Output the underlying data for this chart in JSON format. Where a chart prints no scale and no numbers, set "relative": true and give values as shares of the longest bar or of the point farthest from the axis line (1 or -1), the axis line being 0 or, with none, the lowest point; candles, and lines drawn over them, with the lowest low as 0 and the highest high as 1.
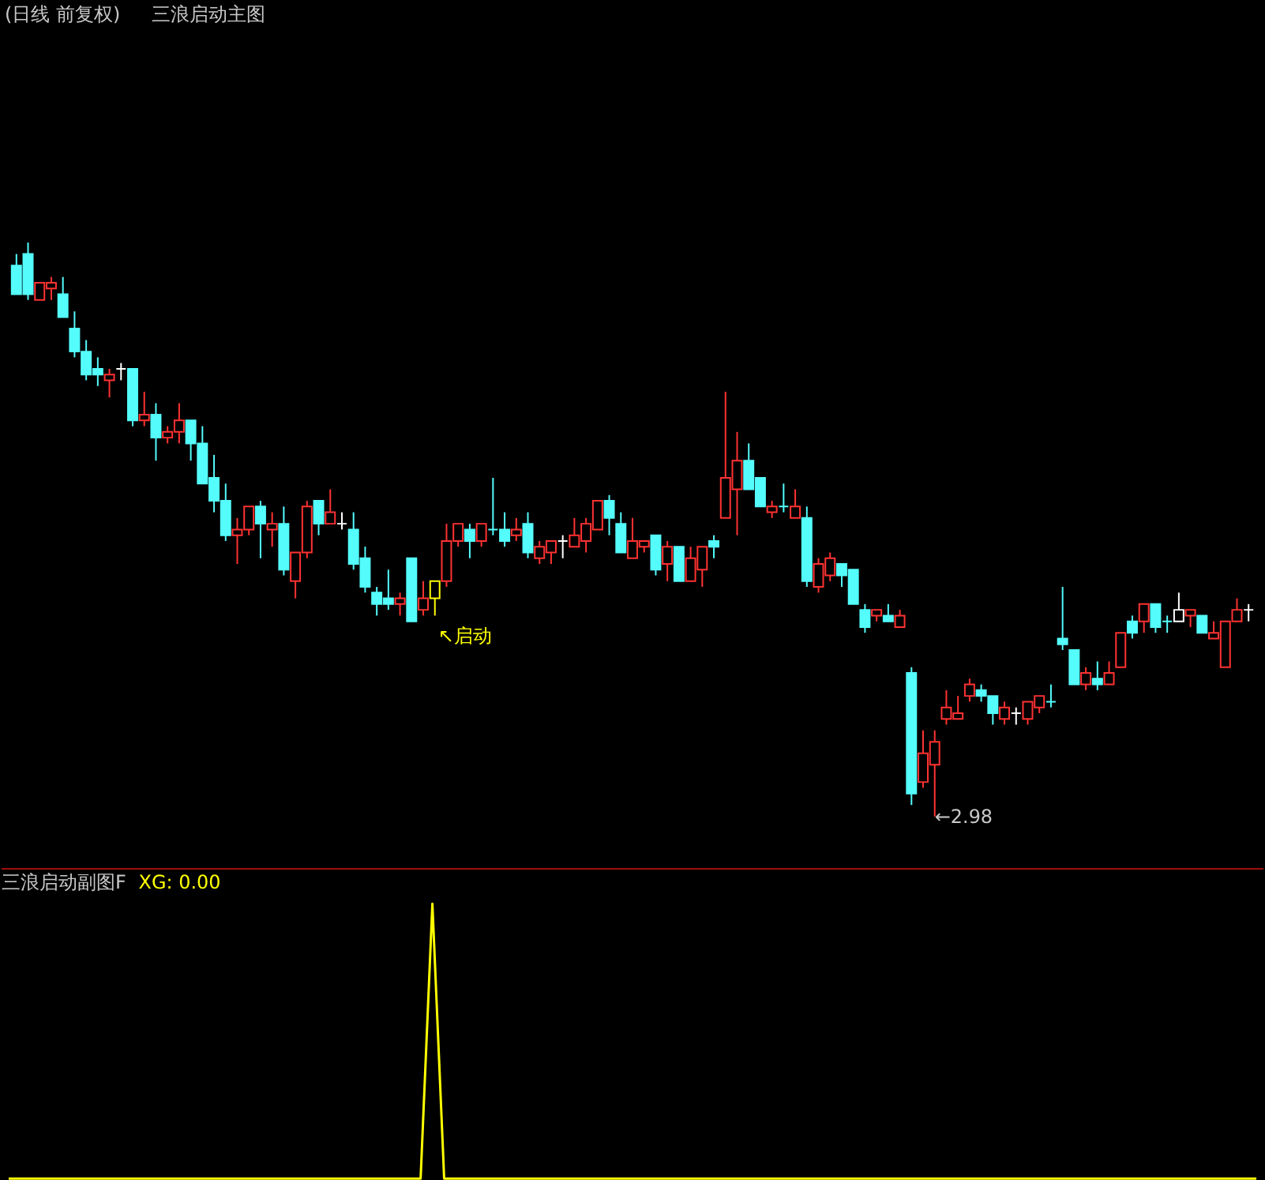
{
  "chart_data": [
    {
      "type": "candlestick",
      "title": "(日线 前复权)",
      "subtitle": "三浪启动主图",
      "relative": true,
      "annotations": [
        "↖启动",
        "←2.98"
      ],
      "categories": [
        null,
        null,
        null,
        null,
        null,
        null,
        null,
        null,
        null,
        null,
        null,
        null,
        null,
        null,
        null,
        null,
        null,
        null,
        null,
        null,
        null,
        null,
        null,
        null,
        null,
        null,
        null,
        null,
        null,
        null,
        null,
        null,
        null,
        null,
        null,
        null,
        null,
        null,
        null,
        null,
        null,
        null,
        null,
        null,
        null,
        null,
        null,
        null,
        null,
        null,
        null,
        null,
        null,
        null,
        null,
        null,
        null,
        null,
        null,
        null,
        null,
        null,
        null,
        null,
        null,
        null,
        null,
        null,
        null,
        null,
        null,
        null,
        null,
        null,
        null,
        null,
        null,
        null,
        null,
        null,
        null,
        null,
        null,
        null,
        null,
        null,
        null,
        null,
        null,
        null,
        null,
        null,
        null,
        null,
        null,
        null,
        null,
        null,
        null,
        null,
        null,
        null,
        null,
        null,
        null,
        null,
        null
      ],
      "ohlc": [
        [
          0.96,
          0.98,
          0.91,
          0.91
        ],
        [
          0.98,
          1.0,
          0.9,
          0.91
        ],
        [
          0.9,
          0.93,
          0.9,
          0.93
        ],
        [
          0.92,
          0.94,
          0.9,
          0.93
        ],
        [
          0.91,
          0.94,
          0.87,
          0.87
        ],
        [
          0.85,
          0.88,
          0.8,
          0.81
        ],
        [
          0.81,
          0.83,
          0.76,
          0.77
        ],
        [
          0.78,
          0.8,
          0.75,
          0.77
        ],
        [
          0.76,
          0.78,
          0.73,
          0.77
        ],
        [
          0.78,
          0.79,
          0.76,
          0.78
        ],
        [
          0.78,
          0.78,
          0.68,
          0.69
        ],
        [
          0.69,
          0.74,
          0.68,
          0.7
        ],
        [
          0.7,
          0.72,
          0.62,
          0.66
        ],
        [
          0.66,
          0.68,
          0.65,
          0.67
        ],
        [
          0.67,
          0.72,
          0.65,
          0.69
        ],
        [
          0.69,
          0.69,
          0.62,
          0.65
        ],
        [
          0.65,
          0.68,
          0.58,
          0.58
        ],
        [
          0.59,
          0.63,
          0.53,
          0.55
        ],
        [
          0.55,
          0.58,
          0.48,
          0.49
        ],
        [
          0.49,
          0.52,
          0.44,
          0.5
        ],
        [
          0.5,
          0.54,
          0.49,
          0.54
        ],
        [
          0.54,
          0.55,
          0.45,
          0.51
        ],
        [
          0.5,
          0.53,
          0.47,
          0.51
        ],
        [
          0.51,
          0.54,
          0.42,
          0.43
        ],
        [
          0.41,
          0.46,
          0.38,
          0.46
        ],
        [
          0.46,
          0.55,
          0.45,
          0.54
        ],
        [
          0.55,
          0.55,
          0.49,
          0.51
        ],
        [
          0.51,
          0.57,
          0.51,
          0.53
        ],
        [
          0.51,
          0.53,
          0.5,
          0.51
        ],
        [
          0.5,
          0.53,
          0.43,
          0.44
        ],
        [
          0.45,
          0.47,
          0.39,
          0.4
        ],
        [
          0.39,
          0.4,
          0.35,
          0.37
        ],
        [
          0.38,
          0.43,
          0.36,
          0.37
        ],
        [
          0.37,
          0.39,
          0.35,
          0.38
        ],
        [
          0.45,
          0.45,
          0.34,
          0.34
        ],
        [
          0.36,
          0.41,
          0.35,
          0.38
        ],
        [
          0.38,
          0.41,
          0.35,
          0.41
        ],
        [
          0.41,
          0.51,
          0.4,
          0.48
        ],
        [
          0.48,
          0.51,
          0.47,
          0.51
        ],
        [
          0.5,
          0.51,
          0.45,
          0.48
        ],
        [
          0.48,
          0.51,
          0.47,
          0.51
        ],
        [
          0.5,
          0.59,
          0.49,
          0.5
        ],
        [
          0.5,
          0.53,
          0.47,
          0.48
        ],
        [
          0.49,
          0.52,
          0.48,
          0.5
        ],
        [
          0.51,
          0.53,
          0.45,
          0.46
        ],
        [
          0.45,
          0.48,
          0.44,
          0.47
        ],
        [
          0.46,
          0.48,
          0.44,
          0.48
        ],
        [
          0.48,
          0.49,
          0.45,
          0.48
        ],
        [
          0.47,
          0.52,
          0.47,
          0.49
        ],
        [
          0.48,
          0.52,
          0.46,
          0.51
        ],
        [
          0.5,
          0.55,
          0.5,
          0.55
        ],
        [
          0.55,
          0.56,
          0.49,
          0.52
        ],
        [
          0.51,
          0.53,
          0.46,
          0.46
        ],
        [
          0.45,
          0.52,
          0.45,
          0.48
        ],
        [
          0.47,
          0.48,
          0.46,
          0.48
        ],
        [
          0.49,
          0.49,
          0.42,
          0.43
        ],
        [
          0.44,
          0.48,
          0.41,
          0.47
        ],
        [
          0.47,
          0.47,
          0.41,
          0.41
        ],
        [
          0.41,
          0.47,
          0.41,
          0.45
        ],
        [
          0.43,
          0.47,
          0.4,
          0.47
        ],
        [
          0.48,
          0.49,
          0.45,
          0.47
        ],
        [
          0.52,
          0.74,
          0.52,
          0.59
        ],
        [
          0.57,
          0.67,
          0.49,
          0.62
        ],
        [
          0.62,
          0.65,
          0.57,
          0.57
        ],
        [
          0.59,
          0.59,
          0.54,
          0.54
        ],
        [
          0.53,
          0.55,
          0.52,
          0.54
        ],
        [
          0.54,
          0.58,
          0.53,
          0.54
        ],
        [
          0.52,
          0.57,
          0.52,
          0.54
        ],
        [
          0.52,
          0.54,
          0.4,
          0.41
        ],
        [
          0.4,
          0.45,
          0.39,
          0.44
        ],
        [
          0.42,
          0.46,
          0.41,
          0.45
        ],
        [
          0.44,
          0.44,
          0.4,
          0.42
        ],
        [
          0.43,
          0.43,
          0.37,
          0.37
        ],
        [
          0.36,
          0.37,
          0.32,
          0.33
        ],
        [
          0.35,
          0.36,
          0.34,
          0.36
        ],
        [
          0.35,
          0.37,
          0.34,
          0.34
        ],
        [
          0.33,
          0.36,
          0.33,
          0.35
        ],
        [
          0.25,
          0.26,
          0.02,
          0.04
        ],
        [
          0.06,
          0.15,
          0.05,
          0.11
        ],
        [
          0.09,
          0.15,
          0.0,
          0.13
        ],
        [
          0.17,
          0.22,
          0.16,
          0.19
        ],
        [
          0.17,
          0.21,
          0.17,
          0.18
        ],
        [
          0.21,
          0.24,
          0.2,
          0.23
        ],
        [
          0.22,
          0.23,
          0.2,
          0.21
        ],
        [
          0.21,
          0.21,
          0.16,
          0.18
        ],
        [
          0.17,
          0.2,
          0.16,
          0.19
        ],
        [
          0.18,
          0.19,
          0.16,
          0.18
        ],
        [
          0.17,
          0.2,
          0.16,
          0.2
        ],
        [
          0.19,
          0.21,
          0.18,
          0.21
        ],
        [
          0.2,
          0.23,
          0.19,
          0.2
        ],
        [
          0.31,
          0.4,
          0.29,
          0.3
        ],
        [
          0.29,
          0.29,
          0.23,
          0.23
        ],
        [
          0.23,
          0.26,
          0.22,
          0.25
        ],
        [
          0.24,
          0.27,
          0.22,
          0.23
        ],
        [
          0.23,
          0.27,
          0.23,
          0.25
        ],
        [
          0.26,
          0.32,
          0.26,
          0.32
        ],
        [
          0.34,
          0.35,
          0.31,
          0.32
        ],
        [
          0.34,
          0.37,
          0.32,
          0.37
        ],
        [
          0.37,
          0.37,
          0.32,
          0.33
        ],
        [
          0.34,
          0.35,
          0.32,
          0.34
        ],
        [
          0.34,
          0.39,
          0.34,
          0.36
        ],
        [
          0.35,
          0.36,
          0.33,
          0.36
        ],
        [
          0.35,
          0.35,
          0.32,
          0.32
        ],
        [
          0.31,
          0.34,
          0.31,
          0.32
        ],
        [
          0.26,
          0.34,
          0.26,
          0.34
        ],
        [
          0.34,
          0.38,
          0.34,
          0.36
        ],
        [
          0.36,
          0.37,
          0.34,
          0.36
        ]
      ],
      "colors": [
        "#54fcfc",
        "#54fcfc",
        "#ff3232",
        "#ff3232",
        "#54fcfc",
        "#54fcfc",
        "#54fcfc",
        "#54fcfc",
        "#ff3232",
        "#ffffff",
        "#54fcfc",
        "#ff3232",
        "#54fcfc",
        "#ff3232",
        "#ff3232",
        "#54fcfc",
        "#54fcfc",
        "#54fcfc",
        "#54fcfc",
        "#ff3232",
        "#ff3232",
        "#54fcfc",
        "#ff3232",
        "#54fcfc",
        "#ff3232",
        "#ff3232",
        "#54fcfc",
        "#ff3232",
        "#ffffff",
        "#54fcfc",
        "#54fcfc",
        "#54fcfc",
        "#54fcfc",
        "#ff3232",
        "#54fcfc",
        "#ff3232",
        "#ffff00",
        "#ff3232",
        "#ff3232",
        "#54fcfc",
        "#ff3232",
        "#54fcfc",
        "#54fcfc",
        "#ff3232",
        "#54fcfc",
        "#ff3232",
        "#ff3232",
        "#ffffff",
        "#ff3232",
        "#ff3232",
        "#ff3232",
        "#54fcfc",
        "#54fcfc",
        "#ff3232",
        "#ff3232",
        "#54fcfc",
        "#ff3232",
        "#54fcfc",
        "#ff3232",
        "#ff3232",
        "#54fcfc",
        "#ff3232",
        "#ff3232",
        "#54fcfc",
        "#54fcfc",
        "#ff3232",
        "#54fcfc",
        "#ff3232",
        "#54fcfc",
        "#ff3232",
        "#ff3232",
        "#54fcfc",
        "#54fcfc",
        "#54fcfc",
        "#ff3232",
        "#54fcfc",
        "#ff3232",
        "#54fcfc",
        "#ff3232",
        "#ff3232",
        "#ff3232",
        "#ff3232",
        "#ff3232",
        "#54fcfc",
        "#54fcfc",
        "#ff3232",
        "#ffffff",
        "#ff3232",
        "#ff3232",
        "#54fcfc",
        "#54fcfc",
        "#54fcfc",
        "#ff3232",
        "#54fcfc",
        "#ff3232",
        "#ff3232",
        "#54fcfc",
        "#ff3232",
        "#54fcfc",
        "#54fcfc",
        "#ffffff",
        "#ff3232",
        "#54fcfc",
        "#ff3232",
        "#ff3232",
        "#ff3232",
        "#ffffff"
      ]
    },
    {
      "type": "line",
      "title": "三浪启动副图F",
      "relative": true,
      "annotations": [
        "XG: 0.00"
      ],
      "categories": [
        null,
        null,
        null,
        null,
        null,
        null,
        null,
        null,
        null,
        null,
        null,
        null,
        null,
        null,
        null,
        null,
        null,
        null,
        null,
        null,
        null,
        null,
        null,
        null,
        null,
        null,
        null,
        null,
        null,
        null,
        null,
        null,
        null,
        null,
        null,
        null,
        null,
        null,
        null,
        null,
        null,
        null,
        null,
        null,
        null,
        null,
        null,
        null,
        null,
        null,
        null,
        null,
        null,
        null,
        null,
        null,
        null,
        null,
        null,
        null,
        null,
        null,
        null,
        null,
        null,
        null,
        null,
        null,
        null,
        null,
        null,
        null,
        null,
        null,
        null,
        null,
        null,
        null,
        null,
        null,
        null,
        null,
        null,
        null,
        null,
        null,
        null,
        null,
        null,
        null,
        null,
        null,
        null,
        null,
        null,
        null,
        null,
        null,
        null,
        null,
        null,
        null,
        null,
        null,
        null,
        null,
        null
      ],
      "series": [
        {
          "color": "#ffff00",
          "values": [
            0,
            0,
            0,
            0,
            0,
            0,
            0,
            0,
            0,
            0,
            0,
            0,
            0,
            0,
            0,
            0,
            0,
            0,
            0,
            0,
            0,
            0,
            0,
            0,
            0,
            0,
            0,
            0,
            0,
            0,
            0,
            0,
            0,
            0,
            0,
            0,
            1,
            0,
            0,
            0,
            0,
            0,
            0,
            0,
            0,
            0,
            0,
            0,
            0,
            0,
            0,
            0,
            0,
            0,
            0,
            0,
            0,
            0,
            0,
            0,
            0,
            0,
            0,
            0,
            0,
            0,
            0,
            0,
            0,
            0,
            0,
            0,
            0,
            0,
            0,
            0,
            0,
            0,
            0,
            0,
            0,
            0,
            0,
            0,
            0,
            0,
            0,
            0,
            0,
            0,
            0,
            0,
            0,
            0,
            0,
            0,
            0,
            0,
            0,
            0,
            0,
            0,
            0,
            0,
            0,
            0,
            0
          ]
        }
      ]
    }
  ]
}
